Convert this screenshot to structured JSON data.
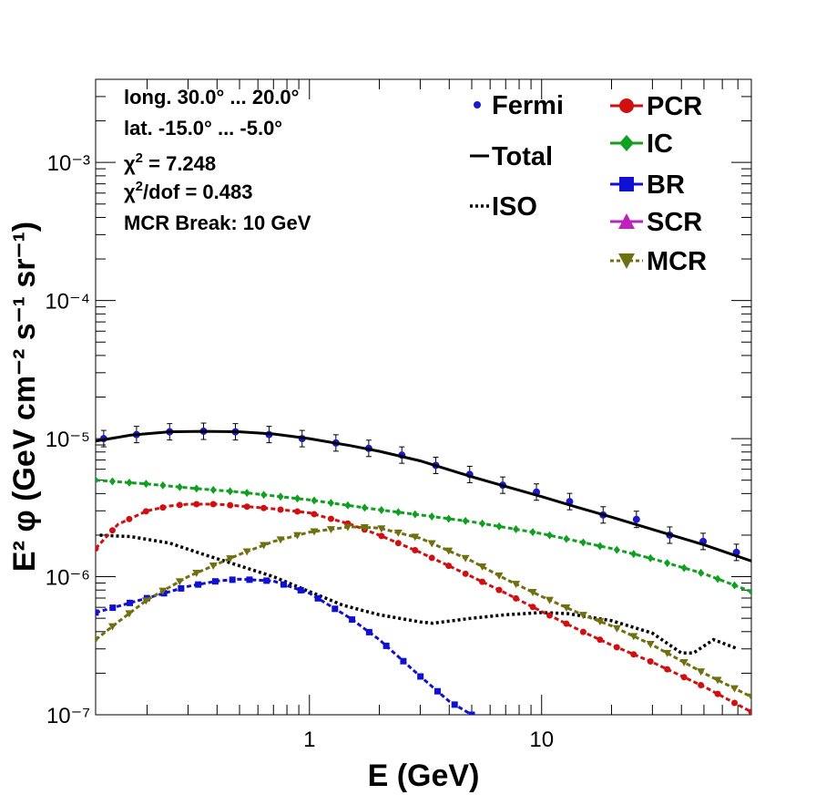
{
  "chart_data": {
    "type": "line",
    "xlabel": "E (GeV)",
    "ylabel": "E² φ (GeV cm⁻² s⁻¹ sr⁻¹)",
    "x_scale": "log",
    "y_scale": "log",
    "xlim": [
      0.12,
      80
    ],
    "ylim": [
      1e-07,
      0.004
    ],
    "x_tick_labels": [
      "1",
      "10"
    ],
    "y_tick_labels": [
      "10⁻⁷",
      "10⁻⁶",
      "10⁻⁵",
      "10⁻⁴",
      "10⁻³"
    ],
    "info": [
      "long. 30.0° ... 20.0°",
      "lat. -15.0° ... -5.0°",
      "χ² = 7.248",
      "χ²/dof = 0.483",
      "MCR Break: 10 GeV"
    ],
    "series": [
      {
        "name": "Fermi",
        "style": "points",
        "color": "#1a1acc",
        "x": [
          0.13,
          0.18,
          0.25,
          0.35,
          0.48,
          0.67,
          0.93,
          1.3,
          1.8,
          2.5,
          3.5,
          4.9,
          6.8,
          9.5,
          13.2,
          18.4,
          25.6,
          35.6,
          49.6,
          69.0
        ],
        "y": [
          1e-05,
          1.07e-05,
          1.12e-05,
          1.13e-05,
          1.12e-05,
          1.07e-05,
          1e-05,
          9.3e-06,
          8.5e-06,
          7.6e-06,
          6.4e-06,
          5.5e-06,
          4.6e-06,
          4.1e-06,
          3.5e-06,
          2.8e-06,
          2.6e-06,
          2e-06,
          1.8e-06,
          1.5e-06
        ]
      },
      {
        "name": "Total",
        "style": "solid",
        "color": "#000000",
        "x": [
          0.12,
          0.17,
          0.25,
          0.35,
          0.5,
          0.7,
          1.0,
          1.5,
          2.0,
          3.0,
          5.0,
          7.0,
          10,
          15,
          20,
          30,
          50,
          80
        ],
        "y": [
          9.6e-06,
          1.06e-05,
          1.12e-05,
          1.13e-05,
          1.12e-05,
          1.08e-05,
          1e-05,
          8.9e-06,
          8.1e-06,
          6.9e-06,
          5.3e-06,
          4.5e-06,
          3.8e-06,
          3.1e-06,
          2.7e-06,
          2.2e-06,
          1.7e-06,
          1.3e-06
        ]
      },
      {
        "name": "ISO",
        "style": "dotted",
        "color": "#000000",
        "x": [
          0.125,
          0.17,
          0.25,
          0.35,
          0.5,
          0.7,
          1.0,
          1.4,
          2.0,
          3.0,
          3.4,
          5.0,
          7.0,
          10,
          13,
          20,
          30,
          40,
          45,
          55,
          70
        ],
        "y": [
          2e-06,
          1.95e-06,
          1.75e-06,
          1.45e-06,
          1.2e-06,
          1e-06,
          7.8e-07,
          6.2e-07,
          5.3e-07,
          4.7e-07,
          4.6e-07,
          5e-07,
          5.3e-07,
          5.5e-07,
          5.4e-07,
          4.8e-07,
          3.9e-07,
          2.8e-07,
          2.8e-07,
          3.5e-07,
          3e-07
        ]
      },
      {
        "name": "PCR",
        "style": "dashed-markers",
        "color": "#d01010",
        "marker": "circle",
        "x": [
          0.12,
          0.15,
          0.2,
          0.25,
          0.3,
          0.4,
          0.5,
          0.7,
          1.0,
          1.5,
          2.0,
          3.0,
          5.0,
          7.0,
          10,
          15,
          20,
          30,
          50,
          80
        ],
        "y": [
          1.6e-06,
          2.4e-06,
          3e-06,
          3.25e-06,
          3.35e-06,
          3.35e-06,
          3.25e-06,
          3.1e-06,
          2.9e-06,
          2.4e-06,
          2e-06,
          1.5e-06,
          1e-06,
          7.6e-07,
          5.6e-07,
          4e-07,
          3.2e-07,
          2.4e-07,
          1.6e-07,
          1.05e-07
        ]
      },
      {
        "name": "IC",
        "style": "dashed-markers",
        "color": "#10a020",
        "marker": "diamond",
        "x": [
          0.12,
          0.2,
          0.3,
          0.5,
          0.7,
          1.0,
          2.0,
          3.0,
          5.0,
          10,
          20,
          30,
          50,
          80
        ],
        "y": [
          5e-06,
          4.7e-06,
          4.4e-06,
          4.1e-06,
          3.85e-06,
          3.6e-06,
          3.05e-06,
          2.8e-06,
          2.5e-06,
          2.05e-06,
          1.6e-06,
          1.35e-06,
          1.05e-06,
          7.8e-07
        ]
      },
      {
        "name": "BR",
        "style": "dashed-markers",
        "color": "#1010d0",
        "marker": "square",
        "x": [
          0.12,
          0.2,
          0.3,
          0.4,
          0.5,
          0.7,
          1.0,
          1.5,
          2.0,
          3.0,
          4.0,
          5.0
        ],
        "y": [
          5.5e-07,
          7e-07,
          8.5e-07,
          9.3e-07,
          9.6e-07,
          9.3e-07,
          7.6e-07,
          5e-07,
          3.5e-07,
          1.9e-07,
          1.25e-07,
          1e-07
        ]
      },
      {
        "name": "SCR",
        "style": "dashed-markers",
        "color": "#c020c0",
        "marker": "triangle-up",
        "x": [],
        "y": []
      },
      {
        "name": "MCR",
        "style": "dashed-markers",
        "color": "#707010",
        "marker": "triangle-down",
        "x": [
          0.12,
          0.15,
          0.2,
          0.3,
          0.5,
          0.7,
          1.0,
          1.5,
          2.0,
          3.0,
          5.0,
          7.0,
          10,
          15,
          20,
          30,
          50,
          80
        ],
        "y": [
          3.5e-07,
          4.7e-07,
          6.8e-07,
          1e-06,
          1.45e-06,
          1.8e-06,
          2.1e-06,
          2.3e-06,
          2.25e-06,
          1.9e-06,
          1.3e-06,
          9.6e-07,
          7.2e-07,
          5.3e-07,
          4.4e-07,
          3.2e-07,
          2e-07,
          1.35e-07
        ]
      }
    ]
  }
}
